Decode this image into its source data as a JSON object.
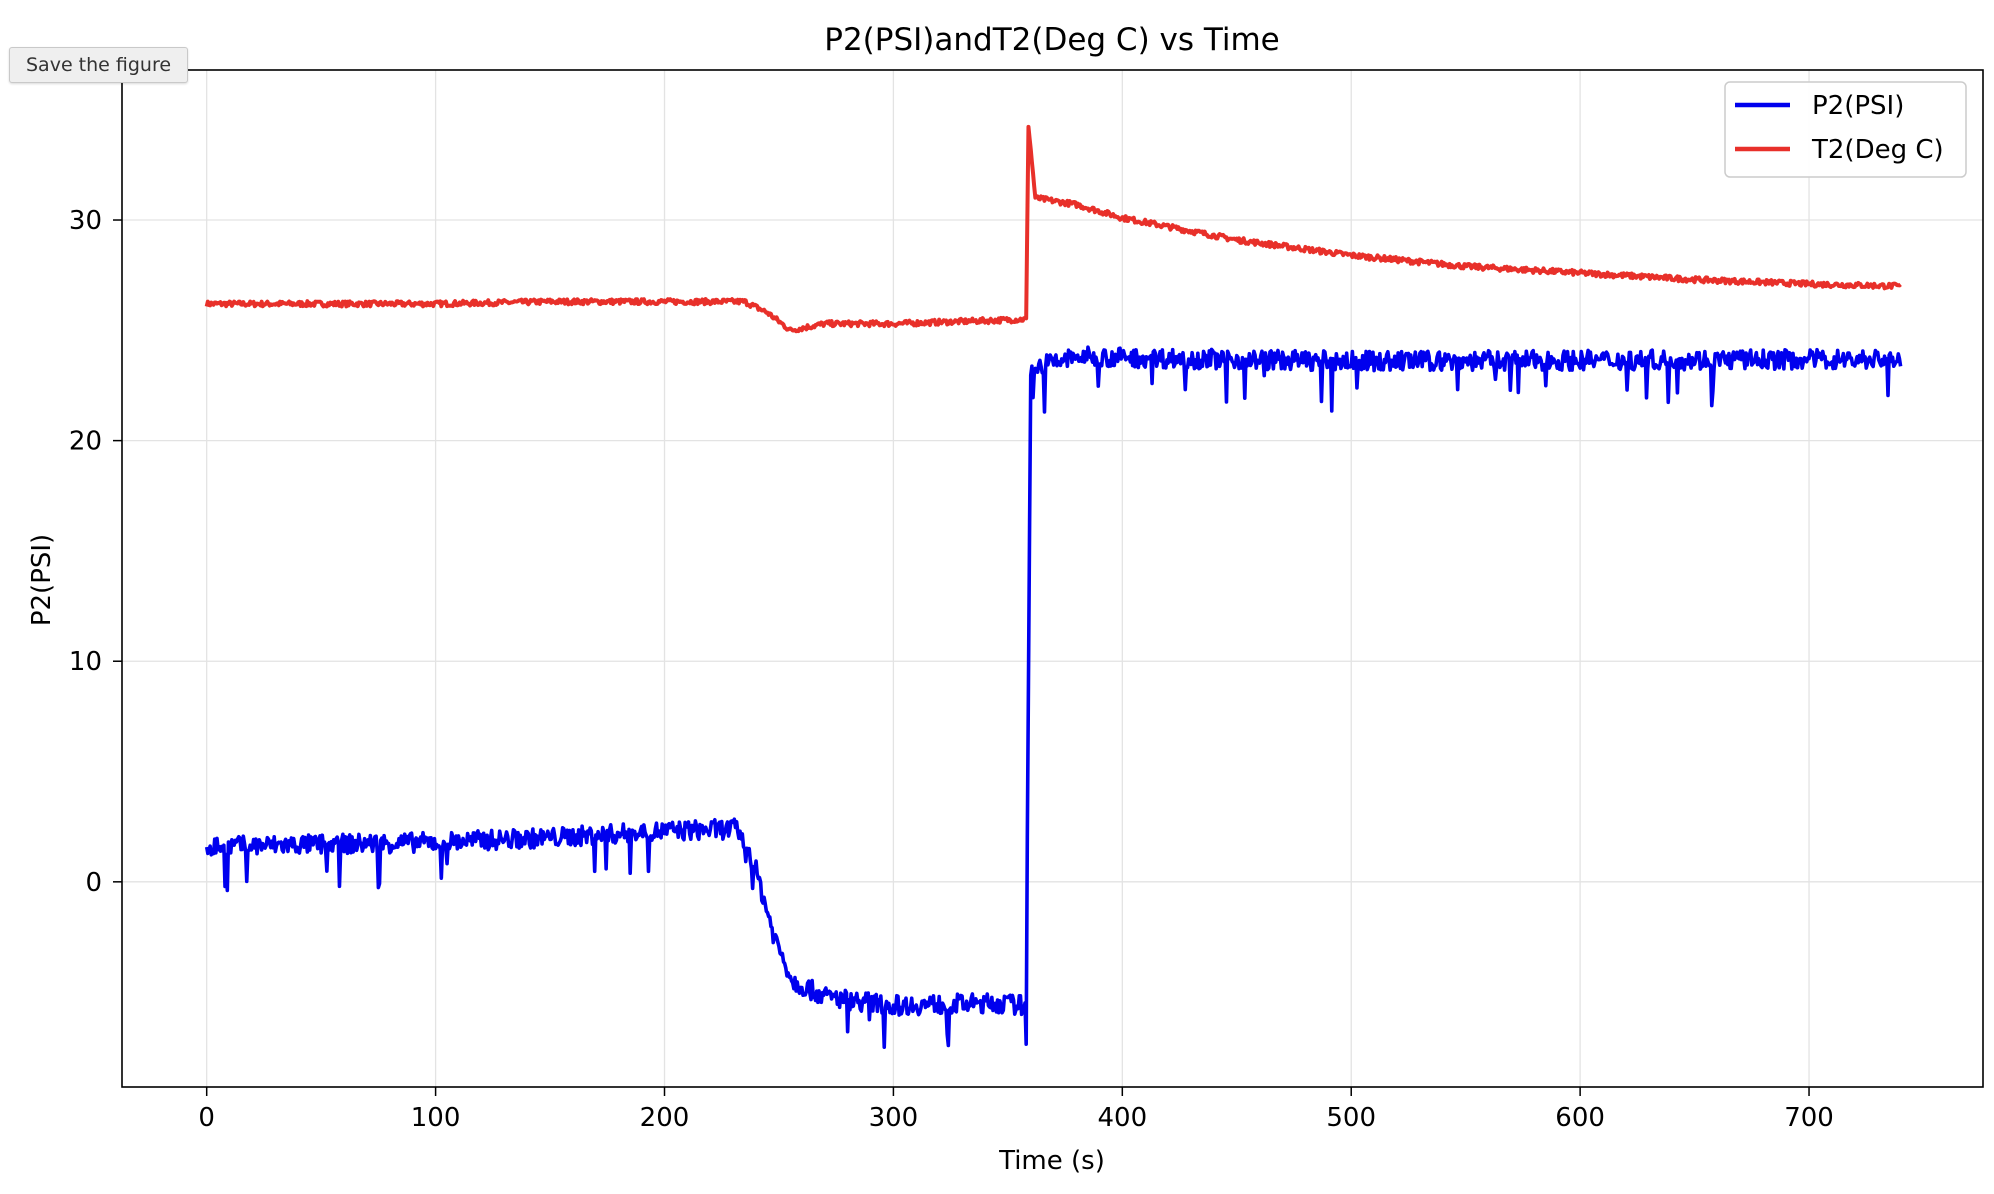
{
  "toolbar": {
    "save_label": "Save the figure"
  },
  "chart_data": {
    "type": "line",
    "title": "P2(PSI)andT2(Deg C) vs Time",
    "xlabel": "Time (s)",
    "ylabel": "P2(PSI)",
    "xlim": [
      -37,
      776
    ],
    "ylim": [
      -9.3,
      36.8
    ],
    "xticks": [
      0,
      100,
      200,
      300,
      400,
      500,
      600,
      700
    ],
    "yticks": [
      0,
      10,
      20,
      30
    ],
    "grid": true,
    "legend_position": "top-right",
    "series": [
      {
        "name": "P2(PSI)",
        "color": "#0000ee",
        "noise": 0.45,
        "points": [
          [
            0,
            1.6
          ],
          [
            100,
            1.8
          ],
          [
            150,
            2.0
          ],
          [
            200,
            2.3
          ],
          [
            232,
            2.4
          ],
          [
            240,
            0.5
          ],
          [
            248,
            -2.5
          ],
          [
            256,
            -4.5
          ],
          [
            270,
            -5.2
          ],
          [
            300,
            -5.6
          ],
          [
            345,
            -5.5
          ],
          [
            358,
            -5.6
          ],
          [
            360,
            23.3
          ],
          [
            380,
            23.8
          ],
          [
            500,
            23.6
          ],
          [
            740,
            23.7
          ]
        ]
      },
      {
        "name": "T2(Deg C)",
        "color": "#e8302a",
        "noise": 0.12,
        "points": [
          [
            0,
            26.2
          ],
          [
            100,
            26.2
          ],
          [
            150,
            26.3
          ],
          [
            200,
            26.3
          ],
          [
            235,
            26.3
          ],
          [
            245,
            25.8
          ],
          [
            255,
            25.0
          ],
          [
            270,
            25.3
          ],
          [
            300,
            25.3
          ],
          [
            358,
            25.5
          ],
          [
            359,
            34.3
          ],
          [
            362,
            31.0
          ],
          [
            380,
            30.7
          ],
          [
            400,
            30.1
          ],
          [
            450,
            29.1
          ],
          [
            500,
            28.4
          ],
          [
            550,
            27.9
          ],
          [
            600,
            27.6
          ],
          [
            650,
            27.3
          ],
          [
            700,
            27.1
          ],
          [
            740,
            27.0
          ]
        ]
      }
    ]
  }
}
